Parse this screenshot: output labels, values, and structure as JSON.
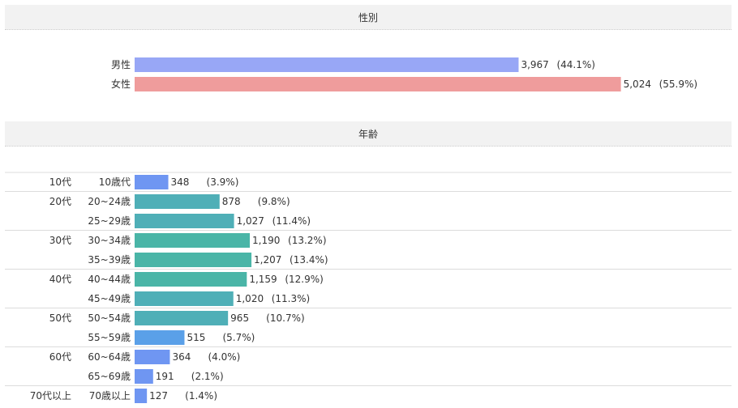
{
  "sections": {
    "gender_title": "性別",
    "age_title": "年齢"
  },
  "chart_data": [
    {
      "type": "bar",
      "orientation": "horizontal",
      "title": "性別",
      "categories": [
        "男性",
        "女性"
      ],
      "values": [
        3967,
        5024
      ],
      "value_labels": [
        "3,967",
        "5,024"
      ],
      "percent_labels": [
        "(44.1%)",
        "(55.9%)"
      ],
      "colors": [
        "#98a7f6",
        "#ef9c9c"
      ],
      "grid": false
    },
    {
      "type": "bar",
      "orientation": "horizontal",
      "title": "年齢",
      "groups": [
        {
          "label": "10代",
          "items": [
            {
              "label": "10歳代",
              "value": 348,
              "value_label": "348",
              "percent": "(3.9%)",
              "color": "#6f96f2"
            }
          ]
        },
        {
          "label": "20代",
          "items": [
            {
              "label": "20~24歳",
              "value": 878,
              "value_label": "878",
              "percent": "(9.8%)",
              "color": "#4fafb7"
            },
            {
              "label": "25~29歳",
              "value": 1027,
              "value_label": "1,027",
              "percent": "(11.4%)",
              "color": "#4fafb7"
            }
          ]
        },
        {
          "label": "30代",
          "items": [
            {
              "label": "30~34歳",
              "value": 1190,
              "value_label": "1,190",
              "percent": "(13.2%)",
              "color": "#4ab5a7"
            },
            {
              "label": "35~39歳",
              "value": 1207,
              "value_label": "1,207",
              "percent": "(13.4%)",
              "color": "#4ab5a7"
            }
          ]
        },
        {
          "label": "40代",
          "items": [
            {
              "label": "40~44歳",
              "value": 1159,
              "value_label": "1,159",
              "percent": "(12.9%)",
              "color": "#4ab5a7"
            },
            {
              "label": "45~49歳",
              "value": 1020,
              "value_label": "1,020",
              "percent": "(11.3%)",
              "color": "#4fafb7"
            }
          ]
        },
        {
          "label": "50代",
          "items": [
            {
              "label": "50~54歳",
              "value": 965,
              "value_label": "965",
              "percent": "(10.7%)",
              "color": "#4fafb7"
            },
            {
              "label": "55~59歳",
              "value": 515,
              "value_label": "515",
              "percent": "(5.7%)",
              "color": "#5aa0e8"
            }
          ]
        },
        {
          "label": "60代",
          "items": [
            {
              "label": "60~64歳",
              "value": 364,
              "value_label": "364",
              "percent": "(4.0%)",
              "color": "#6f96f2"
            },
            {
              "label": "65~69歳",
              "value": 191,
              "value_label": "191",
              "percent": "(2.1%)",
              "color": "#6f96f2"
            }
          ]
        },
        {
          "label": "70代以上",
          "items": [
            {
              "label": "70歳以上",
              "value": 127,
              "value_label": "127",
              "percent": "(1.4%)",
              "color": "#6f96f2"
            }
          ]
        }
      ],
      "grid": false
    }
  ]
}
